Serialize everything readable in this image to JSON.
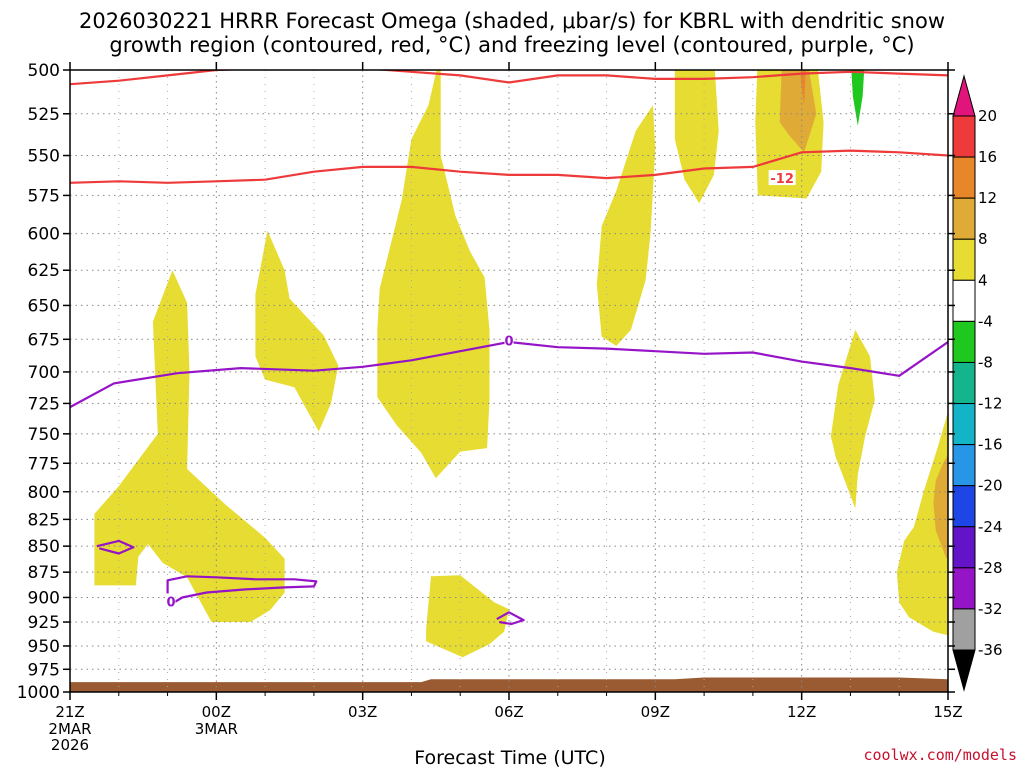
{
  "title_line1": "2026030221 HRRR Forecast Omega (shaded, μbar/s) for KBRL with dendritic snow",
  "title_line2": "growth region (contoured, red, °C) and freezing level (contoured, purple, °C)",
  "credit": "coolwx.com/models",
  "chart_data": {
    "type": "time-height cross section",
    "xlabel": "Forecast Time (UTC)",
    "x_range_hours": [
      0,
      18
    ],
    "y_range_hpa": [
      500,
      1000
    ],
    "y_ticks": [
      500,
      525,
      550,
      575,
      600,
      625,
      650,
      675,
      700,
      725,
      750,
      775,
      800,
      825,
      850,
      875,
      900,
      925,
      950,
      975,
      1000
    ],
    "x_ticks": [
      {
        "hour": 0,
        "label": "21Z",
        "sub1": "2MAR",
        "sub2": "2026"
      },
      {
        "hour": 3,
        "label": "00Z",
        "sub1": "3MAR",
        "sub2": ""
      },
      {
        "hour": 6,
        "label": "03Z",
        "sub1": "",
        "sub2": ""
      },
      {
        "hour": 9,
        "label": "06Z",
        "sub1": "",
        "sub2": ""
      },
      {
        "hour": 12,
        "label": "09Z",
        "sub1": "",
        "sub2": ""
      },
      {
        "hour": 15,
        "label": "12Z",
        "sub1": "",
        "sub2": ""
      },
      {
        "hour": 18,
        "label": "15Z",
        "sub1": "",
        "sub2": ""
      }
    ],
    "colorbar": {
      "ticks": [
        "20",
        "16",
        "12",
        "8",
        "4",
        "-4",
        "-8",
        "-12",
        "-16",
        "-20",
        "-24",
        "-28",
        "-32",
        "-36"
      ],
      "bins": [
        {
          "range": "16 to 20",
          "color": "#ee3a3a"
        },
        {
          "range": "12 to 16",
          "color": "#e8862a"
        },
        {
          "range": "8 to 12",
          "color": "#e0aa36"
        },
        {
          "range": "4 to 8",
          "color": "#e6dc32"
        },
        {
          "range": "-4 to 4",
          "color": "#ffffff"
        },
        {
          "range": "-8 to -4",
          "color": "#1ec81e"
        },
        {
          "range": "-12 to -8",
          "color": "#14b48c"
        },
        {
          "range": "-16 to -12",
          "color": "#14b4c8"
        },
        {
          "range": "-20 to -16",
          "color": "#2896e6"
        },
        {
          "range": "-24 to -20",
          "color": "#1e46e6"
        },
        {
          "range": "-28 to -24",
          "color": "#6414c8"
        },
        {
          "range": "-32 to -28",
          "color": "#9614c8"
        },
        {
          "range": "-36 to -32",
          "color": "#a0a0a0"
        }
      ],
      "over_color": "#e0147a",
      "under_color": "#000000"
    },
    "series": [
      {
        "name": "dendritic growth region -12°C (upper)",
        "color": "#ee3a3a",
        "points": [
          [
            0,
            508
          ],
          [
            1,
            506
          ],
          [
            2,
            503
          ],
          [
            3,
            500
          ],
          [
            4,
            499
          ],
          [
            5,
            498
          ],
          [
            6,
            499
          ],
          [
            7,
            501
          ],
          [
            8,
            503
          ],
          [
            9,
            507
          ],
          [
            10,
            503
          ],
          [
            11,
            503
          ],
          [
            12,
            505
          ],
          [
            13,
            505
          ],
          [
            14,
            504
          ],
          [
            15,
            502
          ],
          [
            16,
            501
          ],
          [
            17,
            502
          ],
          [
            18,
            503
          ]
        ]
      },
      {
        "name": "dendritic growth region -12°C (lower)",
        "color": "#ee3a3a",
        "label": "-12",
        "label_at": [
          14.6,
          564
        ],
        "points": [
          [
            0,
            567
          ],
          [
            1,
            566
          ],
          [
            2,
            567
          ],
          [
            3,
            566
          ],
          [
            4,
            565
          ],
          [
            5,
            560
          ],
          [
            6,
            557
          ],
          [
            7,
            557
          ],
          [
            8,
            560
          ],
          [
            9,
            562
          ],
          [
            10,
            562
          ],
          [
            11,
            564
          ],
          [
            12,
            562
          ],
          [
            13,
            558
          ],
          [
            14,
            557
          ],
          [
            15,
            548
          ],
          [
            16,
            547
          ],
          [
            17,
            548
          ],
          [
            18,
            550
          ]
        ]
      },
      {
        "name": "freezing level 0°C",
        "color": "#9614c8",
        "label": "0",
        "label_at": [
          9.0,
          676
        ],
        "points": [
          [
            0,
            728
          ],
          [
            0.9,
            709
          ],
          [
            2.2,
            701
          ],
          [
            3.5,
            697
          ],
          [
            5,
            699
          ],
          [
            6,
            696
          ],
          [
            7,
            691
          ],
          [
            8,
            684
          ],
          [
            9,
            677
          ],
          [
            10,
            681
          ],
          [
            11,
            682
          ],
          [
            12,
            684
          ],
          [
            13,
            686
          ],
          [
            14,
            685
          ],
          [
            15,
            692
          ],
          [
            16,
            697
          ],
          [
            17,
            703
          ],
          [
            18,
            677
          ]
        ]
      },
      {
        "name": "freezing level 0°C (low-level contours)",
        "color": "#9614c8",
        "label": "0",
        "label_at": [
          2.07,
          904
        ],
        "points": []
      }
    ],
    "omega_regions": [
      {
        "bin": "4 to 8",
        "min_omega": 4
      },
      {
        "bin": "8 to 12",
        "min_omega": 8
      },
      {
        "bin": "12 to 16",
        "min_omega": 12
      },
      {
        "bin": "-8 to -4",
        "min_omega": -8
      }
    ]
  }
}
